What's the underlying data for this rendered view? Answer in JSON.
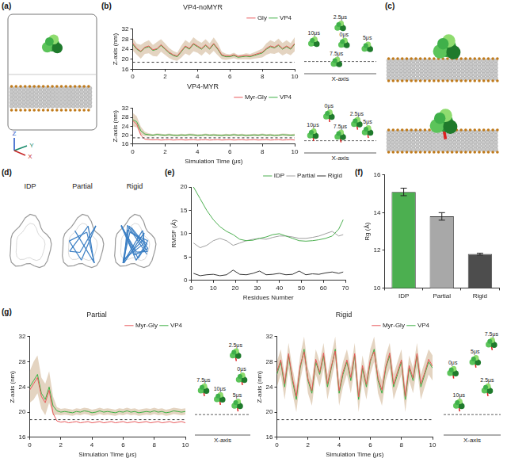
{
  "chart_data": [
    {
      "panel": "(b)",
      "type": "line",
      "title": "VP4-noMYR",
      "y_label": "Z-axis (nm)",
      "x": [
        0,
        0.25,
        0.5,
        0.75,
        1,
        1.25,
        1.5,
        1.75,
        2,
        2.25,
        2.5,
        2.75,
        3,
        3.25,
        3.5,
        3.75,
        4,
        4.25,
        4.5,
        4.75,
        5,
        5.25,
        5.5,
        5.75,
        6,
        6.25,
        6.5,
        6.75,
        7,
        7.25,
        7.5,
        7.75,
        8,
        8.25,
        8.5,
        8.75,
        9,
        9.25,
        9.5,
        9.75,
        10
      ],
      "series": [
        {
          "name": "Gly",
          "color": "#e8585a",
          "values": [
            26.5,
            24.3,
            23.2,
            24.8,
            25.3,
            23.8,
            24.2,
            25.8,
            24.3,
            22.8,
            21.8,
            21.3,
            23.3,
            25.3,
            24.3,
            26.3,
            25.3,
            24.3,
            25.8,
            24.3,
            26.3,
            24.3,
            21.8,
            21.3,
            21.3,
            21.8,
            21.1,
            21.3,
            21.5,
            21.3,
            21.8,
            22.3,
            22.8,
            24.3,
            25.3,
            24.8,
            25.8,
            24.3,
            25.3,
            24.3,
            26.3
          ]
        },
        {
          "name": "VP4",
          "color": "#3cb043",
          "values": [
            26,
            24,
            23,
            24.5,
            25,
            23.5,
            24,
            25.5,
            24,
            22.5,
            21.5,
            21,
            23,
            25,
            24,
            26,
            25,
            24,
            25.5,
            24,
            26,
            24,
            21.5,
            21,
            21,
            21.5,
            20.8,
            21,
            21.2,
            21,
            21.5,
            22,
            22.5,
            24,
            25,
            24.5,
            25.5,
            24,
            25,
            24,
            26
          ],
          "error": [
            2.5,
            2.2,
            2.8,
            2.4,
            2.6,
            2.2,
            2.9,
            2.5,
            2.3,
            2.0,
            1.8,
            1.6,
            2.4,
            2.7,
            2.5,
            2.8,
            2.4,
            2.6,
            2.5,
            2.3,
            2.7,
            2.4,
            1.5,
            1.2,
            1.0,
            1.1,
            0.9,
            1.0,
            1.2,
            1.1,
            1.3,
            1.5,
            1.8,
            2.3,
            2.6,
            2.4,
            2.7,
            2.5,
            2.6,
            2.4,
            2.8
          ]
        }
      ],
      "xlim": [
        0,
        10
      ],
      "xticks": [
        0,
        2,
        4,
        6,
        8,
        10
      ],
      "ylim": [
        16,
        32
      ],
      "yticks": [
        16,
        20,
        24,
        28,
        32
      ],
      "hline": 18.8,
      "legend": "top",
      "inset": {
        "x_label": "X-axis",
        "labels": [
          "2.5μs",
          "10μs",
          "0μs",
          "5μs",
          "7.5μs"
        ]
      }
    },
    {
      "type": "line",
      "title": "VP4-MYR",
      "x_label": "Simulation Time (μs)",
      "y_label": "Z-axis (nm)",
      "x": [
        0,
        0.25,
        0.5,
        0.75,
        1,
        1.25,
        1.5,
        1.75,
        2,
        2.25,
        2.5,
        2.75,
        3,
        3.25,
        3.5,
        3.75,
        4,
        4.25,
        4.5,
        4.75,
        5,
        5.25,
        5.5,
        5.75,
        6,
        6.25,
        6.5,
        6.75,
        7,
        7.25,
        7.5,
        7.75,
        8,
        8.25,
        8.5,
        8.75,
        9,
        9.25,
        9.5,
        9.75,
        10
      ],
      "series": [
        {
          "name": "Myr-Gly",
          "color": "#e8585a",
          "values": [
            26.5,
            25,
            20,
            18.2,
            18,
            17.9,
            18,
            17.8,
            17.9,
            18,
            17.8,
            17.9,
            18,
            17.8,
            17.9,
            18,
            17.8,
            17.9,
            18,
            17.8,
            17.9,
            18,
            17.8,
            17.9,
            18,
            17.8,
            17.9,
            18,
            17.8,
            17.9,
            18,
            17.8,
            17.9,
            18,
            17.8,
            17.9,
            18,
            17.8,
            17.9,
            18,
            17.8
          ]
        },
        {
          "name": "VP4",
          "color": "#3cb043",
          "values": [
            27,
            26,
            22,
            20.5,
            20.2,
            20,
            20.3,
            20.1,
            20,
            20.2,
            20,
            19.9,
            20.1,
            20,
            20.2,
            20.1,
            19.9,
            20,
            20.2,
            20,
            20.1,
            20,
            19.9,
            20.1,
            20,
            20.2,
            20,
            20.1,
            19.9,
            20,
            20.1,
            20,
            20.2,
            20,
            20.1,
            19.9,
            20,
            20.2,
            20.1,
            20,
            20.1
          ],
          "error": [
            3,
            2.5,
            1.8,
            1,
            0.6,
            0.5,
            0.5,
            0.5,
            0.5,
            0.5,
            0.5,
            0.5,
            0.5,
            0.5,
            0.5,
            0.5,
            0.5,
            0.5,
            0.5,
            0.5,
            0.5,
            0.5,
            0.5,
            0.5,
            0.5,
            0.5,
            0.5,
            0.5,
            0.5,
            0.5,
            0.5,
            0.5,
            0.5,
            0.5,
            0.5,
            0.5,
            0.5,
            0.5,
            0.5,
            0.5,
            0.5
          ]
        }
      ],
      "xlim": [
        0,
        10
      ],
      "xticks": [
        0,
        2,
        4,
        6,
        8,
        10
      ],
      "ylim": [
        16,
        32
      ],
      "yticks": [
        16,
        20,
        24,
        28,
        32
      ],
      "hline": 18.8,
      "legend": "top",
      "inset": {
        "x_label": "X-axis",
        "labels": [
          "0μs",
          "2.5μs",
          "5μs",
          "10μs",
          "7.5μs"
        ]
      }
    },
    {
      "panel": "(e)",
      "type": "line",
      "x_label": "Residues Number",
      "y_label": "RMSF (Å)",
      "x": [
        1,
        4,
        7,
        10,
        13,
        16,
        19,
        22,
        25,
        28,
        31,
        34,
        37,
        40,
        43,
        46,
        49,
        52,
        55,
        58,
        61,
        64,
        67,
        69
      ],
      "series": [
        {
          "name": "IDP",
          "color": "#4caf50",
          "values": [
            20,
            17.5,
            15,
            13,
            11.5,
            10.5,
            9.8,
            8.8,
            8.5,
            8.6,
            9,
            9.3,
            9.8,
            10,
            9.5,
            9,
            8.5,
            8.4,
            8.5,
            8.7,
            9,
            9.5,
            11,
            13
          ]
        },
        {
          "name": "Partial",
          "color": "#a0a0a0",
          "values": [
            8,
            7,
            7.5,
            8.5,
            9,
            8.5,
            7.5,
            8,
            8.5,
            8.8,
            9,
            8.8,
            9.2,
            9.5,
            9.5,
            9.3,
            9,
            9,
            9.2,
            9.5,
            10,
            10.5,
            9.5,
            9.8
          ]
        },
        {
          "name": "Rigid",
          "color": "#333333",
          "values": [
            1.5,
            1,
            1.2,
            1.3,
            1,
            1.2,
            2.2,
            1.3,
            1.2,
            1.5,
            2,
            1.2,
            1.3,
            1.5,
            1.2,
            1.3,
            2,
            1.2,
            1.4,
            1.3,
            1.6,
            1.8,
            1.5,
            1.8
          ]
        }
      ],
      "xlim": [
        0,
        70
      ],
      "xticks": [
        0,
        10,
        20,
        30,
        40,
        50,
        60,
        70
      ],
      "ylim": [
        0,
        20
      ],
      "yticks": [
        0,
        5,
        10,
        15,
        20
      ],
      "legend": "top"
    },
    {
      "panel": "(f)",
      "type": "bar",
      "y_label": "Rg (Å)",
      "categories": [
        "IDP",
        "Partial",
        "Rigid"
      ],
      "values": [
        15.1,
        13.8,
        11.8
      ],
      "error": [
        0.2,
        0.2,
        0.05
      ],
      "colors": [
        "#4caf50",
        "#a8a8a8",
        "#4d4d4d"
      ],
      "ylim": [
        10,
        16
      ],
      "yticks": [
        10,
        12,
        14,
        16
      ]
    },
    {
      "panel": "(g)",
      "type": "line",
      "title": "Partial",
      "x_label": "Simulation Time (μs)",
      "y_label": "Z-axis (nm)",
      "x": [
        0,
        0.25,
        0.5,
        0.75,
        1,
        1.25,
        1.5,
        1.75,
        2,
        2.25,
        2.5,
        2.75,
        3,
        3.25,
        3.5,
        3.75,
        4,
        4.25,
        4.5,
        4.75,
        5,
        5.25,
        5.5,
        5.75,
        6,
        6.25,
        6.5,
        6.75,
        7,
        7.25,
        7.5,
        7.75,
        8,
        8.25,
        8.5,
        8.75,
        9,
        9.25,
        9.5,
        9.75,
        10
      ],
      "series": [
        {
          "name": "Myr-Gly",
          "color": "#e8585a",
          "values": [
            23.5,
            24.5,
            25.5,
            22.5,
            21.5,
            23.5,
            19.8,
            18.6,
            18.4,
            18.5,
            18.3,
            18.4,
            18.5,
            18.3,
            18.4,
            18.5,
            18.3,
            18.4,
            18.5,
            18.3,
            18.4,
            18.5,
            18.3,
            18.4,
            18.5,
            18.3,
            18.4,
            18.5,
            18.3,
            18.4,
            18.5,
            18.3,
            18.4,
            18.5,
            18.3,
            18.4,
            18.5,
            18.3,
            18.4,
            18.5,
            18.3
          ]
        },
        {
          "name": "VP4",
          "color": "#3cb043",
          "values": [
            24,
            25,
            26,
            23,
            22,
            24,
            21,
            20.2,
            20,
            20.1,
            20,
            19.9,
            20.1,
            20,
            20.2,
            20.1,
            19.9,
            20,
            20.2,
            20,
            20.1,
            20,
            19.9,
            20.1,
            20,
            20.2,
            20,
            20.1,
            19.9,
            20,
            20.1,
            20,
            20.2,
            20,
            20.1,
            19.9,
            20,
            20.2,
            20.1,
            20,
            20.1
          ],
          "error": [
            2.5,
            3,
            3,
            2.5,
            2.5,
            2.5,
            1.5,
            0.6,
            0.5,
            0.5,
            0.5,
            0.5,
            0.5,
            0.5,
            0.5,
            0.5,
            0.5,
            0.5,
            0.5,
            0.5,
            0.5,
            0.5,
            0.5,
            0.5,
            0.5,
            0.5,
            0.5,
            0.5,
            0.5,
            0.5,
            0.5,
            0.5,
            0.5,
            0.5,
            0.5,
            0.5,
            0.5,
            0.5,
            0.5,
            0.5,
            0.5
          ]
        }
      ],
      "xlim": [
        0,
        10
      ],
      "xticks": [
        0,
        2,
        4,
        6,
        8,
        10
      ],
      "ylim": [
        16,
        32
      ],
      "yticks": [
        16,
        20,
        24,
        28,
        32
      ],
      "hline": 18.8,
      "legend": "top",
      "inset": {
        "x_label": "X-axis",
        "labels": [
          "2.5μs",
          "0μs",
          "7.5μs",
          "10μs",
          "5μs"
        ]
      }
    },
    {
      "type": "line",
      "title": "Rigid",
      "x_label": "Simulation Time (μs)",
      "y_label": "Z-axis (nm)",
      "x": [
        0,
        0.25,
        0.5,
        0.75,
        1,
        1.25,
        1.5,
        1.75,
        2,
        2.25,
        2.5,
        2.75,
        3,
        3.25,
        3.5,
        3.75,
        4,
        4.25,
        4.5,
        4.75,
        5,
        5.25,
        5.5,
        5.75,
        6,
        6.25,
        6.5,
        6.75,
        7,
        7.25,
        7.5,
        7.75,
        8,
        8.25,
        8.5,
        8.75,
        9,
        9.25,
        9.5,
        9.75,
        10
      ],
      "series": [
        {
          "name": "Myr-Gly",
          "color": "#e8585a",
          "values": [
            26.4,
            28.3,
            24.5,
            29.3,
            25.4,
            22.5,
            27.4,
            29.6,
            25.3,
            23.4,
            28.4,
            26.3,
            29.4,
            24.5,
            27.3,
            29.7,
            23.4,
            26.4,
            28.3,
            25.5,
            29.3,
            22.4,
            27.4,
            24.4,
            28.3,
            29.6,
            25.4,
            23.5,
            27.3,
            29.4,
            24.4,
            26.4,
            28.3,
            22.5,
            27.4,
            25.4,
            29.3,
            24.5,
            26.3,
            28.4,
            27.3
          ]
        },
        {
          "name": "VP4",
          "color": "#3cb043",
          "values": [
            26,
            28,
            24,
            29,
            25,
            22,
            27,
            30,
            25,
            23,
            28,
            26,
            29,
            24,
            27,
            30,
            23,
            26,
            28,
            25,
            29,
            22,
            27,
            24,
            28,
            30,
            25,
            23,
            27,
            29,
            24,
            26,
            28,
            22,
            27,
            25,
            29,
            24,
            26,
            28,
            27
          ],
          "error": [
            2,
            2,
            2,
            2,
            2,
            2,
            2,
            2,
            2,
            2,
            2,
            2,
            2,
            2,
            2,
            2,
            2,
            2,
            2,
            2,
            2,
            2,
            2,
            2,
            2,
            2,
            2,
            2,
            2,
            2,
            2,
            2,
            2,
            2,
            2,
            2,
            2,
            2,
            2,
            2,
            2
          ]
        }
      ],
      "xlim": [
        0,
        10
      ],
      "xticks": [
        0,
        2,
        4,
        6,
        8,
        10
      ],
      "ylim": [
        16,
        32
      ],
      "yticks": [
        16,
        20,
        24,
        28,
        32
      ],
      "hline": 18.8,
      "legend": "top",
      "inset": {
        "x_label": "X-axis",
        "labels": [
          "7.5μs",
          "5μs",
          "0μs",
          "2.5μs",
          "10μs"
        ]
      }
    }
  ],
  "figure": {
    "a": {
      "panel": "(a)",
      "axes": [
        "Z",
        "Y",
        "X"
      ]
    },
    "c": {
      "panel": "(c)"
    },
    "d": {
      "panel": "(d)",
      "states": [
        "IDP",
        "Partial",
        "Rigid"
      ]
    }
  }
}
